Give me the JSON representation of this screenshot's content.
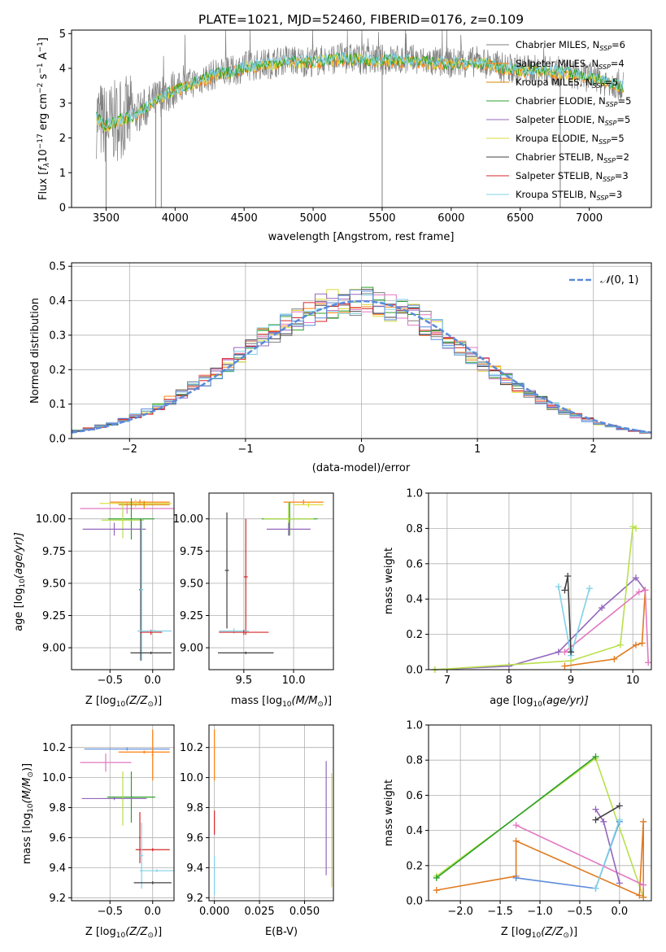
{
  "title": "PLATE=1021, MJD=52460, FIBERID=0176, z=0.109",
  "colors": {
    "chabrier_miles": "#7f7f7f",
    "salpeter_miles": "#ff7f0e",
    "kroupa_miles": "#d98a00",
    "chabrier_elodie": "#2ca02c",
    "salpeter_elodie": "#9467bd",
    "kroupa_elodie": "#dbdb3d",
    "chabrier_stelib": "#404040",
    "salpeter_stelib": "#d62728",
    "kroupa_stelib": "#7fd1e8",
    "gaussian": "#5b8bd9",
    "pink": "#e377c2",
    "mid_orange": "#e07b20",
    "lime": "#b8e04a",
    "purple": "#8e2bb3"
  },
  "chart_data": [
    {
      "type": "line",
      "title": "PLATE=1021, MJD=52460, FIBERID=0176, z=0.109",
      "xlabel": "wavelength [Angstrom, rest frame]",
      "ylabel": "Flux [f_λ10^-17 erg cm^-2 s^-1 A^-1]",
      "ylabel_parts": {
        "a": "Flux [",
        "b": "f",
        "c": "λ",
        "d": "10",
        "e": "−17",
        "f": " erg cm",
        "g": "−2",
        "h": " s",
        "i": "−1",
        "j": " A",
        "k": "−1",
        "l": "]"
      },
      "xlim": [
        3250,
        7450
      ],
      "ylim": [
        0,
        5.1
      ],
      "xticks": [
        "3500",
        "4000",
        "4500",
        "5000",
        "5500",
        "6000",
        "6500",
        "7000"
      ],
      "yticks": [
        "0",
        "1",
        "2",
        "3",
        "4",
        "5"
      ],
      "legend_placement": "right",
      "legend": [
        {
          "label": "Chabrier MILES, N",
          "sub": "SSP",
          "tail": "=6"
        },
        {
          "label": "Salpeter MILES, N",
          "sub": "SSP",
          "tail": "=4"
        },
        {
          "label": "Kroupa MILES, N",
          "sub": "SSP",
          "tail": "=5"
        },
        {
          "label": "Chabrier ELODIE, N",
          "sub": "SSP",
          "tail": "=5"
        },
        {
          "label": "Salpeter ELODIE, N",
          "sub": "SSP",
          "tail": "=5"
        },
        {
          "label": "Kroupa ELODIE, N",
          "sub": "SSP",
          "tail": "=5"
        },
        {
          "label": "Chabrier STELIB, N",
          "sub": "SSP",
          "tail": "=2"
        },
        {
          "label": "Salpeter STELIB, N",
          "sub": "SSP",
          "tail": "=3"
        },
        {
          "label": "Kroupa STELIB, N",
          "sub": "SSP",
          "tail": "=3"
        }
      ],
      "continuum": {
        "x": [
          3430,
          3500,
          3600,
          3700,
          3800,
          3900,
          4000,
          4100,
          4200,
          4300,
          4400,
          4500,
          4600,
          4700,
          4800,
          4900,
          5000,
          5200,
          5400,
          5600,
          5800,
          6000,
          6200,
          6400,
          6600,
          6800,
          7000,
          7250
        ],
        "y": [
          2.6,
          2.35,
          2.55,
          2.65,
          2.9,
          3.2,
          3.4,
          3.55,
          3.7,
          3.85,
          3.9,
          4.05,
          4.1,
          4.15,
          4.25,
          4.2,
          4.2,
          4.3,
          4.25,
          4.25,
          4.2,
          4.15,
          4.2,
          4.0,
          3.95,
          3.9,
          3.75,
          3.5
        ]
      },
      "spikes": [
        {
          "x": 3500,
          "y": 0
        },
        {
          "x": 3860,
          "y": 0
        },
        {
          "x": 3900,
          "y": 0
        },
        {
          "x": 5500,
          "y": 0
        },
        {
          "x": 6790,
          "y": 0
        }
      ]
    },
    {
      "type": "line",
      "xlabel": "(data-model)/error",
      "ylabel": "Normed distribution",
      "xlim": [
        -2.5,
        2.5
      ],
      "ylim": [
        0,
        0.51
      ],
      "xticks": [
        "−2",
        "−1",
        "0",
        "1",
        "2"
      ],
      "yticks": [
        "0.0",
        "0.1",
        "0.2",
        "0.3",
        "0.4",
        "0.5"
      ],
      "legend_placement": "top-right",
      "legend": [
        {
          "label": "N(0,1)",
          "script": "𝒩",
          "args": "(0, 1)"
        }
      ]
    },
    {
      "type": "scatter",
      "xlabel": "Z [log10(Z/Z⊙)]",
      "ylabel": "age [log10(age/yr)]",
      "xlabel_parts": {
        "a": "Z [log",
        "b": "10",
        "c": "(Z/Z",
        "d": "⊙",
        "e": ")]"
      },
      "ylabel_parts": {
        "a": "age  [log",
        "b": "10",
        "c": "(age/yr)]"
      },
      "xticks": [
        "−0.5",
        "0.0"
      ],
      "yticks": [
        "9.00",
        "9.25",
        "9.50",
        "9.75",
        "10.00"
      ],
      "xlim": [
        -0.95,
        0.25
      ],
      "ylim": [
        8.83,
        10.2
      ],
      "points": [
        {
          "x": -0.15,
          "y": 10.13,
          "xerr": 0.35,
          "yerr": 0.02,
          "c": "#ff7f0e"
        },
        {
          "x": -0.2,
          "y": 10.12,
          "xerr": 0.42,
          "yerr": 0.03,
          "c": "#dbdb3d"
        },
        {
          "x": -0.3,
          "y": 10.08,
          "xerr": 0.55,
          "yerr": 0.04,
          "c": "#e377c2"
        },
        {
          "x": -0.1,
          "y": 10.11,
          "xerr": 0.3,
          "yerr": 0.03,
          "c": "#d98a00"
        },
        {
          "x": -0.25,
          "y": 10.0,
          "xerr": 0.27,
          "yerr": 0.16,
          "c": "#2ca02c"
        },
        {
          "x": -0.35,
          "y": 9.99,
          "xerr": 0.25,
          "yerr": 0.14,
          "c": "#b8e04a"
        },
        {
          "x": -0.45,
          "y": 9.92,
          "xerr": 0.37,
          "yerr": 0.05,
          "c": "#9467bd"
        },
        {
          "x": -0.14,
          "y": 9.45,
          "xerr": 0.02,
          "yerr": 0.55,
          "c": "#404040"
        },
        {
          "x": -0.13,
          "y": 9.45,
          "xerr": 0.02,
          "yerr": 0.55,
          "c": "#7fd1e8"
        },
        {
          "x": -0.02,
          "y": 9.12,
          "xerr": 0.13,
          "yerr": 0.02,
          "c": "#d62728"
        },
        {
          "x": 0.02,
          "y": 9.13,
          "xerr": 0.2,
          "yerr": 0.01,
          "c": "#7fd1e8"
        },
        {
          "x": -0.02,
          "y": 8.96,
          "xerr": 0.24,
          "yerr": 0.01,
          "c": "#404040"
        }
      ]
    },
    {
      "type": "scatter",
      "xlabel": "mass [log10(M/M⊙)]",
      "xlabel_parts": {
        "a": "mass [log",
        "b": "10",
        "c": "(M/M",
        "d": "⊙",
        "e": ")]"
      },
      "xticks": [
        "9.5",
        "10.0"
      ],
      "yticks": [
        "9.00",
        "9.25",
        "9.50",
        "9.75",
        "10.00"
      ],
      "xlim": [
        9.15,
        10.4
      ],
      "ylim": [
        8.83,
        10.2
      ],
      "points": [
        {
          "x": 10.1,
          "y": 10.13,
          "xerr": 0.2,
          "yerr": 0.02,
          "c": "#ff7f0e"
        },
        {
          "x": 10.15,
          "y": 10.11,
          "xerr": 0.15,
          "yerr": 0.02,
          "c": "#dbdb3d"
        },
        {
          "x": 9.96,
          "y": 10.0,
          "xerr": 0.28,
          "yerr": 0.13,
          "c": "#2ca02c"
        },
        {
          "x": 9.95,
          "y": 10.0,
          "xerr": 0.25,
          "yerr": 0.13,
          "c": "#b8e04a"
        },
        {
          "x": 9.95,
          "y": 9.92,
          "xerr": 0.22,
          "yerr": 0.05,
          "c": "#9467bd"
        },
        {
          "x": 9.33,
          "y": 9.6,
          "xerr": 0.02,
          "yerr": 0.45,
          "c": "#404040"
        },
        {
          "x": 9.52,
          "y": 9.55,
          "xerr": 0.02,
          "yerr": 0.45,
          "c": "#d62728"
        },
        {
          "x": 9.4,
          "y": 9.13,
          "xerr": 0.15,
          "yerr": 0.02,
          "c": "#7fd1e8"
        },
        {
          "x": 9.5,
          "y": 9.12,
          "xerr": 0.25,
          "yerr": 0.02,
          "c": "#d62728"
        },
        {
          "x": 9.52,
          "y": 8.96,
          "xerr": 0.28,
          "yerr": 0.01,
          "c": "#404040"
        }
      ]
    },
    {
      "type": "line",
      "xlabel": "age [log10(age/yr)]",
      "ylabel": "mass weight",
      "xlabel_parts": {
        "a": "age  [log",
        "b": "10",
        "c": "(age/yr)]"
      },
      "xlim": [
        6.7,
        10.3
      ],
      "ylim": [
        0,
        1
      ],
      "xticks": [
        "7",
        "8",
        "9",
        "10"
      ],
      "yticks": [
        "0.0",
        "0.2",
        "0.4",
        "0.6",
        "0.8",
        "1.0"
      ],
      "series": [
        {
          "c": "#9467bd",
          "x": [
            6.8,
            8.0,
            8.8,
            9.5,
            10.05,
            10.2
          ],
          "y": [
            0.0,
            0.02,
            0.1,
            0.35,
            0.52,
            0.45
          ]
        },
        {
          "c": "#e07b20",
          "x": [
            8.9,
            9.7,
            10.05,
            10.15,
            10.2
          ],
          "y": [
            0.02,
            0.06,
            0.14,
            0.15,
            0.45
          ]
        },
        {
          "c": "#b8e04a",
          "x": [
            6.8,
            9.0,
            9.8,
            10.0,
            10.05
          ],
          "y": [
            0.0,
            0.05,
            0.14,
            0.81,
            0.8
          ]
        },
        {
          "c": "#e377c2",
          "x": [
            8.9,
            10.1,
            10.2,
            10.25
          ],
          "y": [
            0.1,
            0.44,
            0.45,
            0.04
          ]
        },
        {
          "c": "#7fd1e8",
          "x": [
            8.8,
            9.0,
            9.3
          ],
          "y": [
            0.47,
            0.08,
            0.46
          ]
        },
        {
          "c": "#404040",
          "x": [
            8.9,
            8.95,
            9.0
          ],
          "y": [
            0.45,
            0.53,
            0.1
          ]
        }
      ]
    },
    {
      "type": "scatter",
      "xlabel": "Z [log10(Z/Z⊙)]",
      "ylabel": "mass [log10(M/M⊙)]",
      "xlabel_parts": {
        "a": "Z [log",
        "b": "10",
        "c": "(Z/Z",
        "d": "⊙",
        "e": ")]"
      },
      "ylabel_parts": {
        "a": "mass [log",
        "b": "10",
        "c": "(M/M",
        "d": "⊙",
        "e": ")]"
      },
      "xticks": [
        "−0.5",
        "0.0"
      ],
      "yticks": [
        "9.2",
        "9.4",
        "9.6",
        "9.8",
        "10.0",
        "10.2"
      ],
      "xlim": [
        -0.95,
        0.25
      ],
      "ylim": [
        9.18,
        10.35
      ],
      "points": [
        {
          "x": -0.3,
          "y": 10.19,
          "xerr": 0.5,
          "yerr": 0.01,
          "c": "#5b8bd9"
        },
        {
          "x": -0.1,
          "y": 10.17,
          "xerr": 0.3,
          "yerr": 0.01,
          "c": "#ff7f0e"
        },
        {
          "x": 0.0,
          "y": 10.15,
          "xerr": 0.01,
          "yerr": 0.17,
          "c": "#ff7f0e"
        },
        {
          "x": -0.55,
          "y": 10.1,
          "xerr": 0.3,
          "yerr": 0.06,
          "c": "#e377c2"
        },
        {
          "x": -0.25,
          "y": 9.87,
          "xerr": 0.28,
          "yerr": 0.17,
          "c": "#2ca02c"
        },
        {
          "x": -0.35,
          "y": 9.86,
          "xerr": 0.25,
          "yerr": 0.18,
          "c": "#b8e04a"
        },
        {
          "x": -0.45,
          "y": 9.86,
          "xerr": 0.38,
          "yerr": 0.01,
          "c": "#9467bd"
        },
        {
          "x": -0.15,
          "y": 9.6,
          "xerr": 0.01,
          "yerr": 0.17,
          "c": "#d62728"
        },
        {
          "x": 0.0,
          "y": 9.52,
          "xerr": 0.2,
          "yerr": 0.01,
          "c": "#d62728"
        },
        {
          "x": -0.13,
          "y": 9.48,
          "xerr": 0.02,
          "yerr": 0.22,
          "c": "#7fd1e8"
        },
        {
          "x": 0.05,
          "y": 9.38,
          "xerr": 0.2,
          "yerr": 0.01,
          "c": "#7fd1e8"
        },
        {
          "x": 0.0,
          "y": 9.3,
          "xerr": 0.22,
          "yerr": 0.01,
          "c": "#404040"
        }
      ]
    },
    {
      "type": "scatter",
      "xlabel": "E(B-V)",
      "xticks": [
        "0.000",
        "0.025",
        "0.050"
      ],
      "yticks": [
        "9.2",
        "9.4",
        "9.6",
        "9.8",
        "10.0",
        "10.2"
      ],
      "xlim": [
        -0.003,
        0.066
      ],
      "ylim": [
        9.18,
        10.35
      ],
      "points": [
        {
          "x": 0.0,
          "y": 10.15,
          "yerr": 0.17,
          "c": "#ff7f0e"
        },
        {
          "x": 0.0,
          "y": 9.7,
          "yerr": 0.08,
          "c": "#d62728"
        },
        {
          "x": 0.0,
          "y": 9.35,
          "yerr": 0.13,
          "c": "#7fd1e8"
        },
        {
          "x": 0.062,
          "y": 9.73,
          "yerr": 0.38,
          "c": "#9467bd"
        },
        {
          "x": 0.065,
          "y": 9.65,
          "yerr": 0.38,
          "c": "#dbdb3d"
        }
      ]
    },
    {
      "type": "line",
      "xlabel": "Z [log10(Z/Z⊙)]",
      "ylabel": "mass weight",
      "xlabel_parts": {
        "a": "Z [log",
        "b": "10",
        "c": "(Z/Z",
        "d": "⊙",
        "e": ")]"
      },
      "xlim": [
        -2.4,
        0.4
      ],
      "ylim": [
        0,
        1
      ],
      "xticks": [
        "−2.0",
        "−1.5",
        "−1.0",
        "−0.5",
        "0.0"
      ],
      "yticks": [
        "0.0",
        "0.2",
        "0.4",
        "0.6",
        "0.8",
        "1.0"
      ],
      "series": [
        {
          "c": "#b8e04a",
          "x": [
            -2.3,
            -0.3,
            0.3
          ],
          "y": [
            0.14,
            0.81,
            0.02
          ]
        },
        {
          "c": "#2ca02c",
          "x": [
            -2.3,
            -0.3
          ],
          "y": [
            0.13,
            0.82
          ]
        },
        {
          "c": "#e07b20",
          "x": [
            -2.3,
            -1.3,
            -1.3,
            0.25,
            0.3,
            0.3
          ],
          "y": [
            0.06,
            0.14,
            0.34,
            0.03,
            0.45,
            0.02
          ]
        },
        {
          "c": "#5b8bd9",
          "x": [
            -1.3,
            -0.3,
            0.0
          ],
          "y": [
            0.13,
            0.07,
            0.45
          ]
        },
        {
          "c": "#e377c2",
          "x": [
            -1.3,
            0.3
          ],
          "y": [
            0.43,
            0.09
          ]
        },
        {
          "c": "#9467bd",
          "x": [
            -0.3,
            -0.2,
            0.0
          ],
          "y": [
            0.52,
            0.45,
            0.1
          ]
        },
        {
          "c": "#7fd1e8",
          "x": [
            -0.3,
            0.0
          ],
          "y": [
            0.07,
            0.46
          ]
        },
        {
          "c": "#404040",
          "x": [
            -0.3,
            0.0
          ],
          "y": [
            0.46,
            0.54
          ]
        }
      ]
    }
  ]
}
